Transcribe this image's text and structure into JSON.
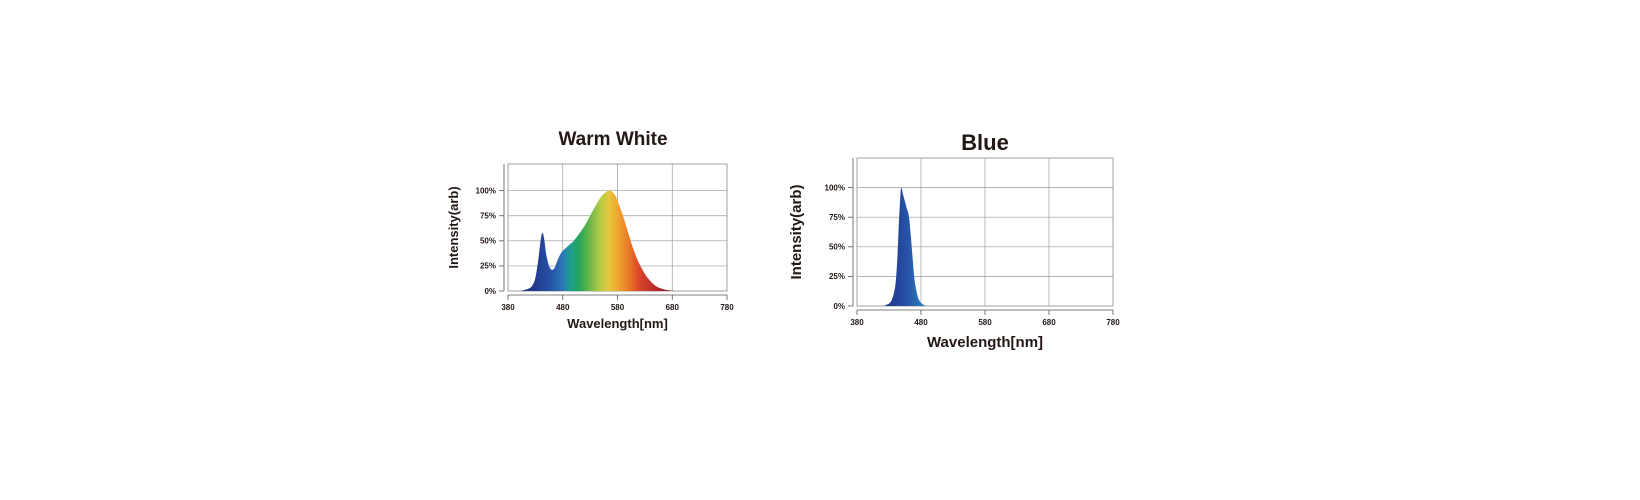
{
  "chart_data": [
    {
      "type": "area",
      "title": "Warm White",
      "xlabel": "Wavelength[nm]",
      "ylabel": "Intensity(arb)",
      "xlim": [
        380,
        780
      ],
      "ylim": [
        0,
        100
      ],
      "x_ticks": [
        "380",
        "480",
        "580",
        "680",
        "780"
      ],
      "y_ticks": [
        "0%",
        "25%",
        "50%",
        "75%",
        "100%"
      ],
      "grid": true,
      "series": [
        {
          "x": [
            380,
            400,
            410,
            420,
            425,
            430,
            435,
            440,
            443,
            446,
            450,
            455,
            460,
            465,
            470,
            475,
            480,
            490,
            500,
            510,
            520,
            530,
            540,
            550,
            560,
            565,
            570,
            575,
            580,
            590,
            600,
            610,
            620,
            630,
            640,
            650,
            660,
            670,
            680,
            690,
            700,
            710,
            720
          ],
          "values": [
            0,
            0,
            1,
            3,
            6,
            13,
            30,
            52,
            58,
            52,
            36,
            25,
            21,
            23,
            30,
            36,
            40,
            45,
            50,
            57,
            65,
            75,
            85,
            94,
            99,
            100,
            99,
            96,
            90,
            75,
            57,
            40,
            27,
            17,
            10,
            5,
            2.5,
            1,
            0.3,
            0,
            0,
            0,
            0
          ]
        }
      ]
    },
    {
      "type": "area",
      "title": "Blue",
      "xlabel": "Wavelength[nm]",
      "ylabel": "Intensity(arb)",
      "xlim": [
        380,
        780
      ],
      "ylim": [
        0,
        100
      ],
      "x_ticks": [
        "380",
        "480",
        "580",
        "680",
        "780"
      ],
      "y_ticks": [
        "0%",
        "25%",
        "50%",
        "75%",
        "100%"
      ],
      "grid": true,
      "series": [
        {
          "x": [
            380,
            420,
            425,
            430,
            435,
            440,
            443,
            445,
            447,
            449,
            452,
            455,
            458,
            461,
            464,
            467,
            470,
            474,
            478,
            484,
            490,
            500,
            780
          ],
          "values": [
            0,
            0,
            1,
            2,
            6,
            18,
            40,
            65,
            86,
            100,
            94,
            88,
            82,
            76,
            60,
            40,
            22,
            10,
            4,
            1,
            0.3,
            0,
            0
          ]
        }
      ]
    }
  ]
}
